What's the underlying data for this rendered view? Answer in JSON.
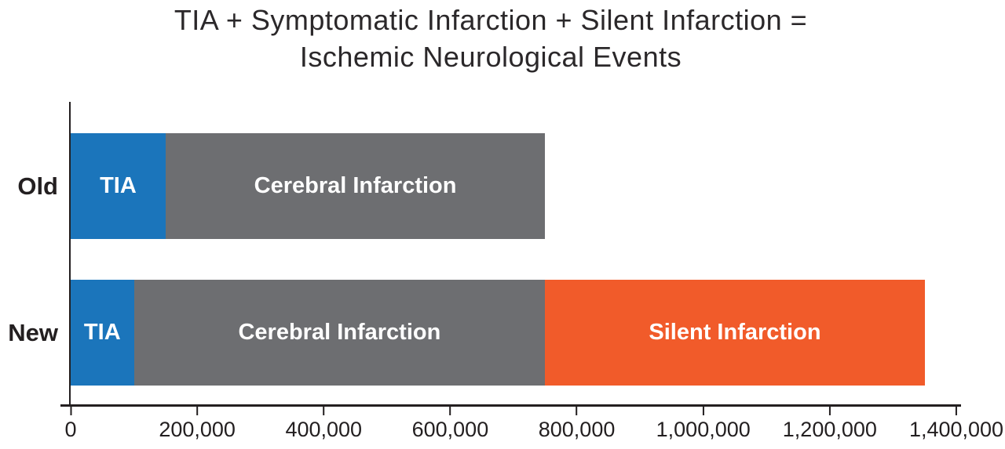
{
  "background_color": "#ffffff",
  "text_color": "#231f20",
  "chart_data": {
    "type": "bar",
    "orientation": "horizontal",
    "stacked": true,
    "title": "TIA + Symptomatic Infarction + Silent Infarction = Ischemic Neurological Events",
    "title_lines": [
      "TIA + Symptomatic Infarction + Silent Infarction =",
      "Ischemic Neurological Events"
    ],
    "categories": [
      "Old",
      "New"
    ],
    "series": [
      {
        "name": "TIA",
        "color": "#1b75bb",
        "values": [
          150000,
          100000
        ]
      },
      {
        "name": "Cerebral Infarction",
        "color": "#6d6e71",
        "values": [
          600000,
          650000
        ]
      },
      {
        "name": "Silent Infarction",
        "color": "#f15b2a",
        "values": [
          0,
          600000
        ]
      }
    ],
    "totals": {
      "Old": 750000,
      "New": 1350000
    },
    "xlabel": "",
    "ylabel": "",
    "xlim": [
      0,
      1400000
    ],
    "x_ticks": [
      0,
      200000,
      400000,
      600000,
      800000,
      1000000,
      1200000,
      1400000
    ],
    "x_tick_labels": [
      "0",
      "200,000",
      "400,000",
      "600,000",
      "800,000",
      "1,000,000",
      "1,200,000",
      "1,400,000"
    ],
    "grid": false,
    "legend": "none (labels drawn inside bar segments)"
  }
}
